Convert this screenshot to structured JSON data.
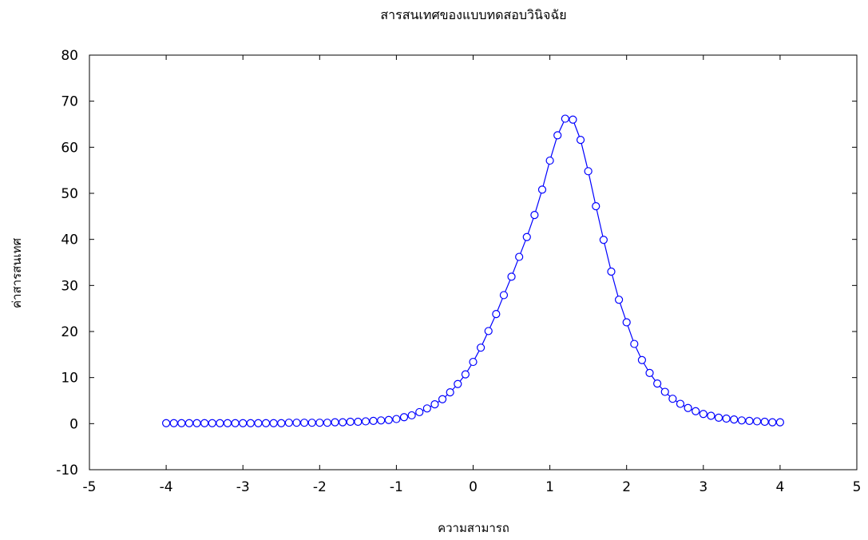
{
  "chart_data": {
    "type": "line",
    "title": "สารสนเทศของแบบทดสอบวินิจฉัย",
    "xlabel": "ความสามารถ",
    "ylabel": "ค่าสารสนเทศ",
    "xlim": [
      -5,
      5
    ],
    "ylim": [
      -10,
      80
    ],
    "x_ticks": [
      -5,
      -4,
      -3,
      -2,
      -1,
      0,
      1,
      2,
      3,
      4,
      5
    ],
    "y_ticks": [
      -10,
      0,
      10,
      20,
      30,
      40,
      50,
      60,
      70,
      80
    ],
    "grid": false,
    "legend": "none",
    "series": [
      {
        "color": "#0000ff",
        "marker": "open-circle",
        "x": [
          -4.0,
          -3.9,
          -3.8,
          -3.7,
          -3.6,
          -3.5,
          -3.4,
          -3.3,
          -3.2,
          -3.1,
          -3.0,
          -2.9,
          -2.8,
          -2.7,
          -2.6,
          -2.5,
          -2.4,
          -2.3,
          -2.2,
          -2.1,
          -2.0,
          -1.9,
          -1.8,
          -1.7,
          -1.6,
          -1.5,
          -1.4,
          -1.3,
          -1.2,
          -1.1,
          -1.0,
          -0.9,
          -0.8,
          -0.7,
          -0.6,
          -0.5,
          -0.4,
          -0.3,
          -0.2,
          -0.1,
          0.0,
          0.1,
          0.2,
          0.3,
          0.4,
          0.5,
          0.6,
          0.7,
          0.8,
          0.9,
          1.0,
          1.1,
          1.2,
          1.3,
          1.4,
          1.5,
          1.6,
          1.7,
          1.8,
          1.9,
          2.0,
          2.1,
          2.2,
          2.3,
          2.4,
          2.5,
          2.6,
          2.7,
          2.8,
          2.9,
          3.0,
          3.1,
          3.2,
          3.3,
          3.4,
          3.5,
          3.6,
          3.7,
          3.8,
          3.9,
          4.0
        ],
        "y": [
          0.1,
          0.1,
          0.1,
          0.1,
          0.1,
          0.1,
          0.1,
          0.1,
          0.1,
          0.1,
          0.1,
          0.1,
          0.1,
          0.1,
          0.1,
          0.1,
          0.2,
          0.2,
          0.2,
          0.2,
          0.2,
          0.2,
          0.3,
          0.3,
          0.4,
          0.4,
          0.5,
          0.6,
          0.7,
          0.8,
          1.0,
          1.4,
          1.8,
          2.5,
          3.3,
          4.2,
          5.3,
          6.8,
          8.6,
          10.7,
          13.4,
          16.5,
          20.1,
          23.8,
          27.9,
          31.9,
          36.2,
          40.5,
          45.3,
          50.8,
          57.1,
          62.6,
          66.2,
          66.0,
          61.6,
          54.8,
          47.2,
          39.9,
          33.0,
          26.9,
          22.0,
          17.3,
          13.8,
          11.0,
          8.7,
          6.9,
          5.4,
          4.3,
          3.4,
          2.7,
          2.1,
          1.7,
          1.3,
          1.1,
          0.9,
          0.7,
          0.6,
          0.5,
          0.4,
          0.3,
          0.3
        ]
      }
    ]
  }
}
